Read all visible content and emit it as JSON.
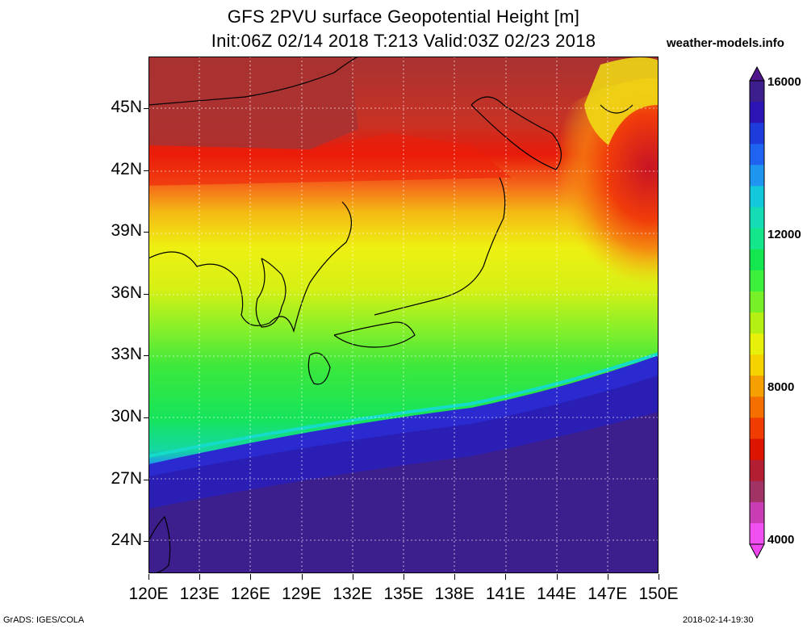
{
  "title_line1": "GFS 2PVU surface Geopotential Height [m]",
  "title_line2": "Init:06Z 02/14 2018 T:213 Valid:03Z 02/23 2018",
  "site": "weather-models.info",
  "lat_labels": [
    "45N",
    "42N",
    "39N",
    "36N",
    "33N",
    "30N",
    "27N",
    "24N"
  ],
  "lon_labels": [
    "120E",
    "123E",
    "126E",
    "129E",
    "132E",
    "135E",
    "138E",
    "141E",
    "144E",
    "147E",
    "150E"
  ],
  "colorbar": {
    "labels": [
      "16000",
      "12000",
      "8000",
      "4000"
    ],
    "colors": [
      "#3c1e8c",
      "#2a14b4",
      "#1e3cdc",
      "#1e64f0",
      "#1e96f0",
      "#14c8dc",
      "#14dcb4",
      "#14e68c",
      "#14e650",
      "#3cf03c",
      "#78f028",
      "#b4f014",
      "#e6f00a",
      "#f5d200",
      "#f5a000",
      "#f56e00",
      "#f03c00",
      "#dc1400",
      "#b41e32",
      "#a03264",
      "#c83cb4",
      "#f050f0"
    ],
    "max_color": "#50148c",
    "min_color": "#f046f0"
  },
  "footer_left": "GrADS: IGES/COLA",
  "footer_right": "2018-02-14-19:30"
}
